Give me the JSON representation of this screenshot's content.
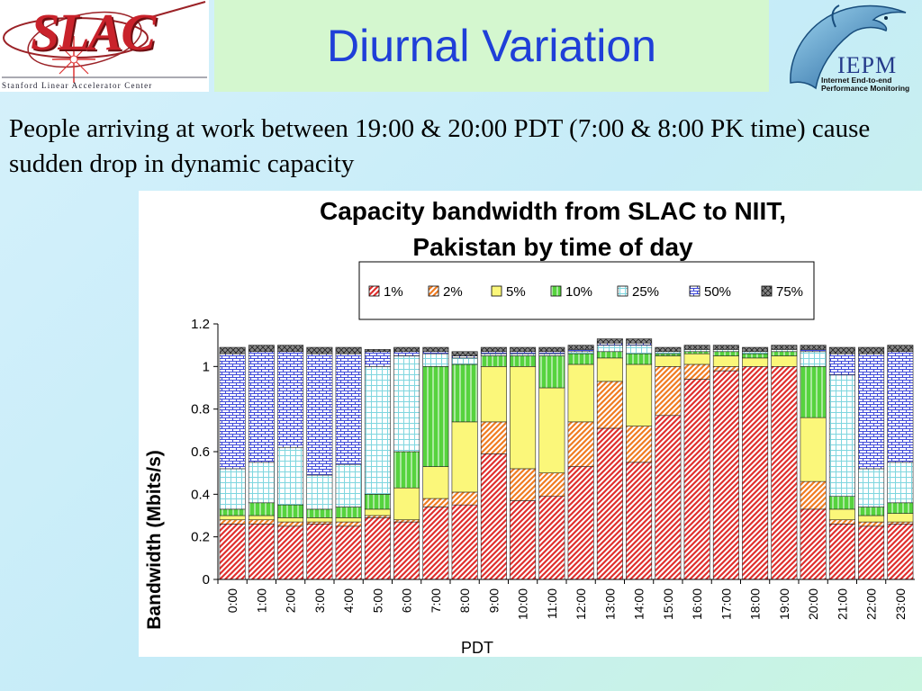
{
  "header": {
    "slac_logo_text": "SLAC",
    "slac_subtitle": "Stanford Linear Accelerator Center",
    "title": "Diurnal Variation",
    "iepm_logo_text": "IEPM",
    "iepm_subtitle": "Internet End-to-end Performance Monitoring"
  },
  "caption": "People arriving at work between 19:00 & 20:00 PDT (7:00 & 8:00 PK time) cause sudden drop in dynamic capacity",
  "colors": {
    "p1": "#e0302e",
    "p2": "#f07c22",
    "p5": "#fbf77a",
    "p10": "#56d33e",
    "p25": "#7fd6df",
    "p50": "#3f49d9",
    "p75": "#555555"
  },
  "chart_data": {
    "type": "bar",
    "stacked": true,
    "title_line1": "Capacity bandwidth from SLAC to NIIT,",
    "title_line2": "Pakistan by time of day",
    "xlabel": "PDT",
    "ylabel": "Bandwidth (Mbits/s)",
    "ylim": [
      0,
      1.2
    ],
    "yticks": [
      "0",
      "0.2",
      "0.4",
      "0.6",
      "0.8",
      "1",
      "1.2"
    ],
    "legend_position": "top",
    "grid": false,
    "categories": [
      "0:00",
      "1:00",
      "2:00",
      "3:00",
      "4:00",
      "5:00",
      "6:00",
      "7:00",
      "8:00",
      "9:00",
      "10:00",
      "11:00",
      "12:00",
      "13:00",
      "14:00",
      "15:00",
      "16:00",
      "17:00",
      "18:00",
      "19:00",
      "20:00",
      "21:00",
      "22:00",
      "23:00"
    ],
    "series": [
      {
        "name": "1%",
        "key": "p1",
        "values": [
          0.26,
          0.26,
          0.25,
          0.26,
          0.25,
          0.29,
          0.27,
          0.34,
          0.35,
          0.59,
          0.37,
          0.39,
          0.53,
          0.71,
          0.55,
          0.77,
          0.94,
          0.98,
          1.0,
          1.0,
          0.33,
          0.26,
          0.25,
          0.26
        ]
      },
      {
        "name": "2%",
        "key": "p2",
        "values": [
          0.02,
          0.02,
          0.02,
          0.01,
          0.02,
          0.01,
          0.01,
          0.04,
          0.06,
          0.15,
          0.15,
          0.11,
          0.21,
          0.22,
          0.17,
          0.23,
          0.07,
          0.02,
          0.0,
          0.0,
          0.13,
          0.02,
          0.02,
          0.01
        ]
      },
      {
        "name": "5%",
        "key": "p5",
        "values": [
          0.02,
          0.02,
          0.02,
          0.02,
          0.02,
          0.03,
          0.15,
          0.15,
          0.33,
          0.26,
          0.48,
          0.4,
          0.27,
          0.11,
          0.29,
          0.05,
          0.05,
          0.05,
          0.04,
          0.05,
          0.3,
          0.05,
          0.03,
          0.04
        ]
      },
      {
        "name": "10%",
        "key": "p10",
        "values": [
          0.03,
          0.06,
          0.06,
          0.04,
          0.05,
          0.07,
          0.17,
          0.47,
          0.27,
          0.05,
          0.05,
          0.15,
          0.05,
          0.03,
          0.05,
          0.01,
          0.01,
          0.02,
          0.02,
          0.02,
          0.24,
          0.06,
          0.04,
          0.05
        ]
      },
      {
        "name": "25%",
        "key": "p25",
        "values": [
          0.19,
          0.19,
          0.27,
          0.16,
          0.2,
          0.6,
          0.45,
          0.06,
          0.03,
          0.01,
          0.01,
          0.01,
          0.01,
          0.03,
          0.04,
          0.01,
          0.01,
          0.01,
          0.01,
          0.01,
          0.07,
          0.57,
          0.18,
          0.19
        ]
      },
      {
        "name": "50%",
        "key": "p50",
        "values": [
          0.54,
          0.52,
          0.45,
          0.57,
          0.52,
          0.07,
          0.02,
          0.01,
          0.01,
          0.01,
          0.01,
          0.01,
          0.01,
          0.01,
          0.01,
          0.0,
          0.0,
          0.0,
          0.0,
          0.0,
          0.01,
          0.1,
          0.54,
          0.52
        ]
      },
      {
        "name": "75%",
        "key": "p75",
        "values": [
          0.03,
          0.03,
          0.03,
          0.03,
          0.03,
          0.01,
          0.02,
          0.02,
          0.02,
          0.02,
          0.02,
          0.02,
          0.02,
          0.02,
          0.02,
          0.02,
          0.02,
          0.02,
          0.02,
          0.02,
          0.02,
          0.03,
          0.03,
          0.03
        ]
      }
    ]
  }
}
